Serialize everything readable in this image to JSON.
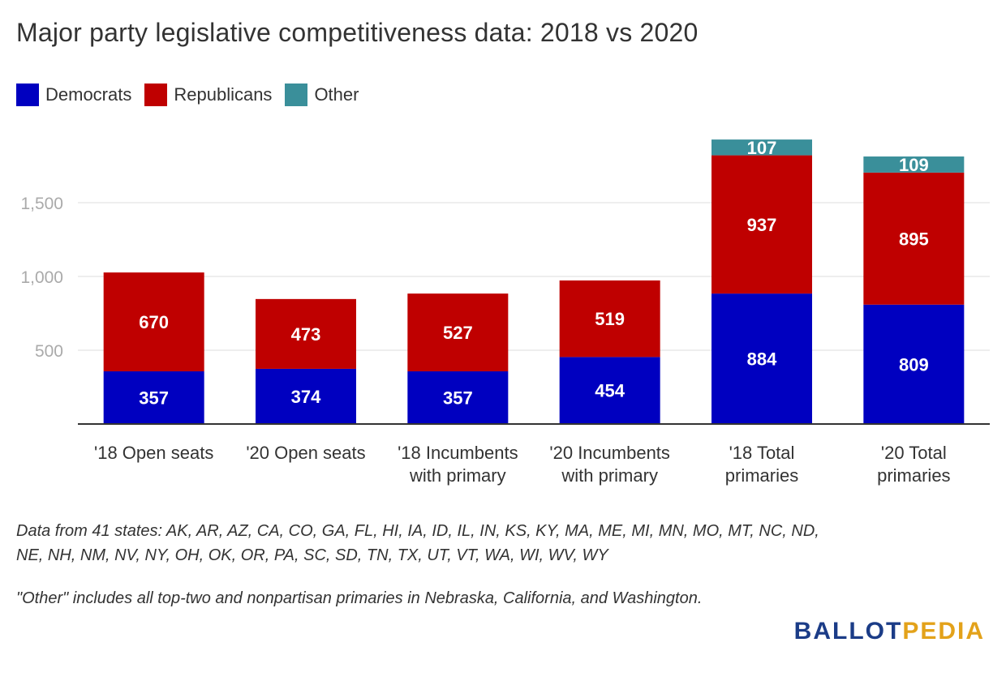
{
  "chart_data": {
    "type": "bar",
    "stacked": true,
    "title": "Major party legislative competitiveness data: 2018 vs 2020",
    "categories": [
      [
        "'18 Open seats"
      ],
      [
        "'20 Open seats"
      ],
      [
        "'18 Incumbents",
        "with primary"
      ],
      [
        "'20 Incumbents",
        "with primary"
      ],
      [
        "'18 Total",
        "primaries"
      ],
      [
        "'20 Total",
        "primaries"
      ]
    ],
    "series": [
      {
        "name": "Democrats",
        "color": "#0000c0",
        "values": [
          357,
          374,
          357,
          454,
          884,
          809
        ]
      },
      {
        "name": "Republicans",
        "color": "#bf0000",
        "values": [
          670,
          473,
          527,
          519,
          937,
          895
        ]
      },
      {
        "name": "Other",
        "color": "#3a8f9a",
        "values": [
          0,
          0,
          0,
          0,
          107,
          109
        ]
      }
    ],
    "yticks": [
      500,
      1000,
      1500
    ],
    "ytick_labels": [
      "500",
      "1,000",
      "1,500"
    ],
    "ylim": [
      0,
      1950
    ],
    "grid": true,
    "legend_position": "top-left"
  },
  "legend": {
    "democrats": "Democrats",
    "republicans": "Republicans",
    "other": "Other"
  },
  "notes": {
    "states": "Data from 41 states: AK, AR, AZ, CA, CO, GA, FL, HI, IA, ID, IL, IN, KS, KY, MA, ME, MI, MN, MO, MT, NC, ND, NE, NH, NM, NV, NY, OH, OK, OR, PA, SC, SD, TN, TX, UT, VT, WA, WI, WV, WY",
    "other": "\"Other\" includes all top-two and nonpartisan primaries in Nebraska, California, and Washington."
  },
  "logo": {
    "ballot": "BALLOT",
    "pedia": "PEDIA"
  }
}
